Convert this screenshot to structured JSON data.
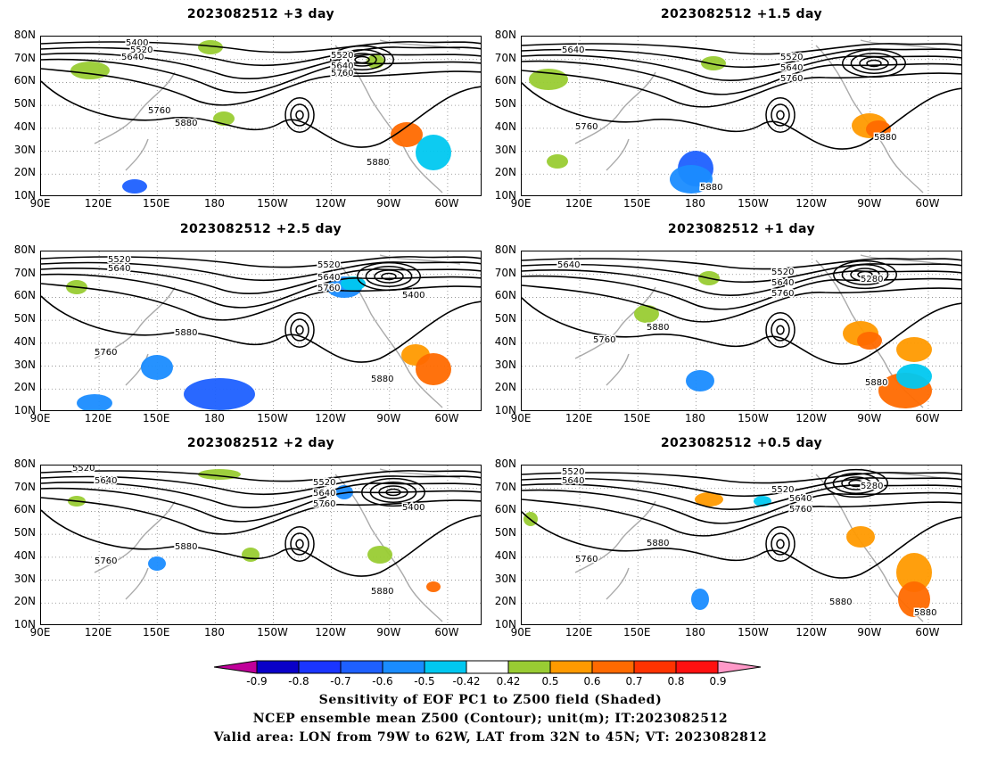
{
  "panels": [
    {
      "title": "2023082512  +3 day"
    },
    {
      "title": "2023082512  +1.5 day"
    },
    {
      "title": "2023082512  +2.5 day"
    },
    {
      "title": "2023082512  +1 day"
    },
    {
      "title": "2023082512  +2 day"
    },
    {
      "title": "2023082512  +0.5 day"
    }
  ],
  "lat_labels": [
    "80N",
    "70N",
    "60N",
    "50N",
    "40N",
    "30N",
    "20N",
    "10N"
  ],
  "lon_labels": [
    "90E",
    "120E",
    "150E",
    "180",
    "150W",
    "120W",
    "90W",
    "60W"
  ],
  "contour_labels": [
    "5400",
    "5520",
    "5640",
    "5760",
    "5880",
    "5280"
  ],
  "colorbar": {
    "ticks": [
      "-0.9",
      "-0.8",
      "-0.7",
      "-0.6",
      "-0.5",
      "-0.42",
      "0.42",
      "0.5",
      "0.6",
      "0.7",
      "0.8",
      "0.9"
    ],
    "colors": [
      "#c0009a",
      "#0a00c8",
      "#1a35ff",
      "#1e60ff",
      "#1a8cff",
      "#00c8f0",
      "#ffffff",
      "#99cc33",
      "#ff9a00",
      "#ff6a00",
      "#ff3300",
      "#ff1010",
      "#ff99c8"
    ]
  },
  "caption": {
    "line1": "Sensitivity of EOF PC1 to Z500 field (Shaded)",
    "line2": "NCEP ensemble mean Z500 (Contour); unit(m); IT:2023082512",
    "line3": "Valid area: LON from 79W to 62W, LAT from 32N to 45N; VT: 2023082812"
  }
}
